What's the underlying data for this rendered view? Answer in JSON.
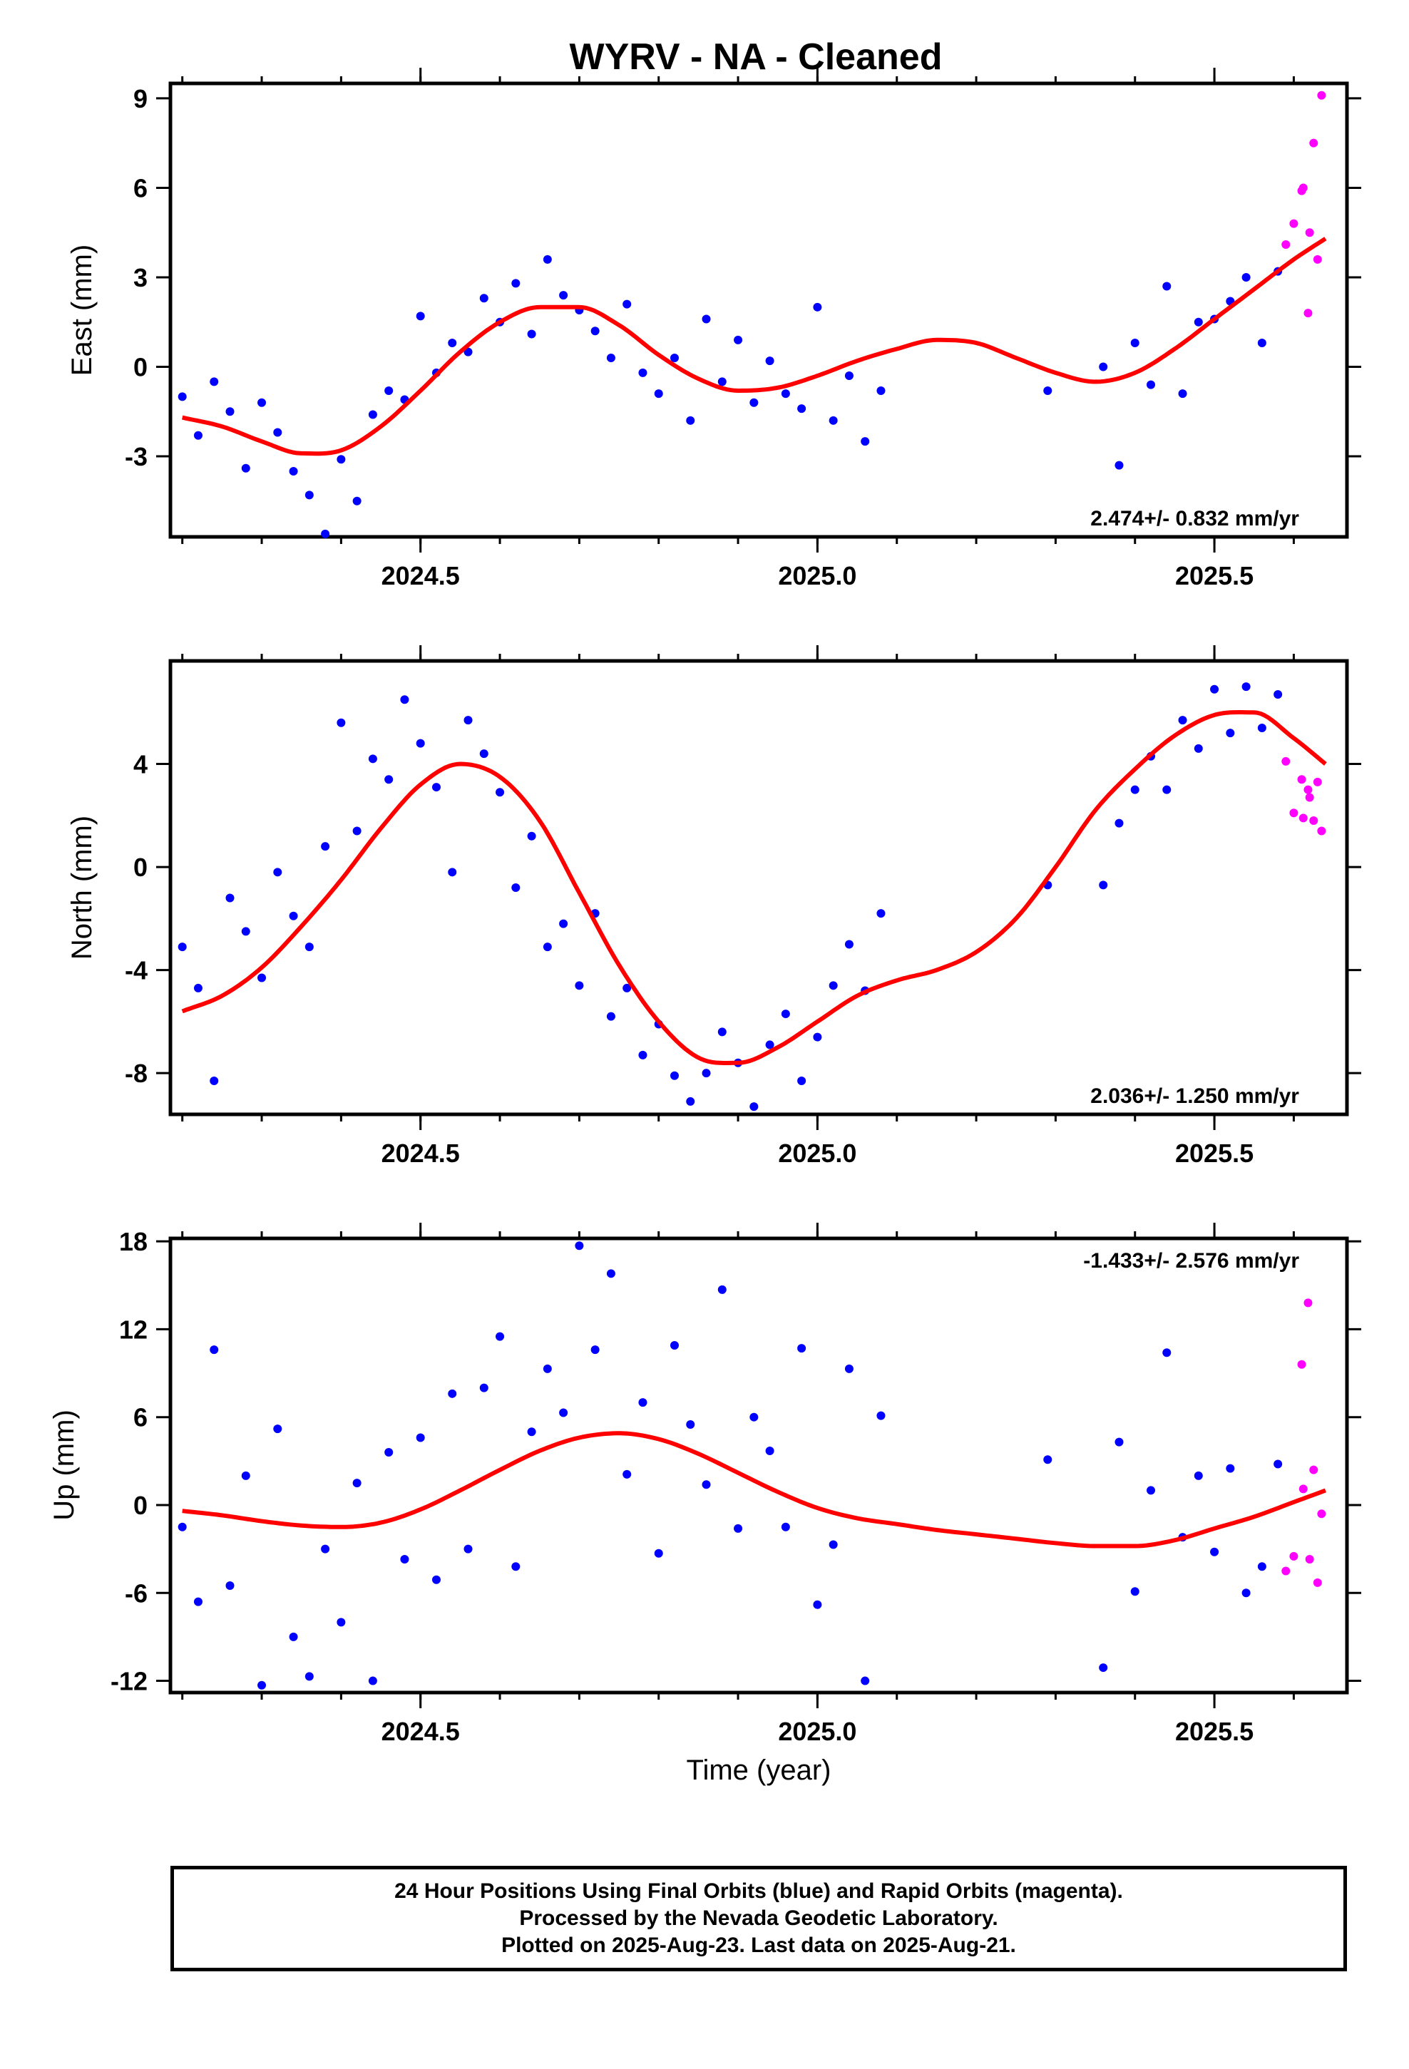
{
  "title": "WYRV  - NA - Cleaned",
  "xlabel": "Time (year)",
  "caption": {
    "line1": "24 Hour Positions Using Final Orbits (blue) and Rapid Orbits (magenta).",
    "line2": "Processed by the Nevada Geodetic Laboratory.",
    "line3": "Plotted on 2025-Aug-23. Last data on 2025-Aug-21."
  },
  "colors": {
    "final_orbits": "#0000ff",
    "rapid_orbits": "#ff00ff",
    "model_fit": "#ff0000",
    "frame": "#000000"
  },
  "chart_data": [
    {
      "type": "scatter",
      "panel": "east",
      "ylabel": "East (mm)",
      "rate_label": "2.474+/- 0.832 mm/yr",
      "xlim": [
        2024.185,
        2025.667
      ],
      "ylim": [
        -5.7,
        9.5
      ],
      "xticks": [
        2024.5,
        2025.0,
        2025.5
      ],
      "xtick_labels": [
        "2024.5",
        "2025.0",
        "2025.5"
      ],
      "yticks": [
        -3,
        0,
        3,
        6,
        9
      ],
      "ytick_labels": [
        "-3",
        "0",
        "3",
        "6",
        "9"
      ],
      "fit_knots": {
        "x": [
          2024.2,
          2024.25,
          2024.3,
          2024.35,
          2024.4,
          2024.45,
          2024.5,
          2024.55,
          2024.6,
          2024.65,
          2024.7,
          2024.75,
          2024.8,
          2024.85,
          2024.9,
          2024.95,
          2025.0,
          2025.05,
          2025.1,
          2025.15,
          2025.2,
          2025.25,
          2025.3,
          2025.35,
          2025.4,
          2025.45,
          2025.5,
          2025.55,
          2025.6,
          2025.64
        ],
        "y": [
          -1.7,
          -2.0,
          -2.5,
          -2.9,
          -2.8,
          -2.0,
          -0.8,
          0.5,
          1.5,
          2.0,
          2.0,
          1.4,
          0.4,
          -0.4,
          -0.8,
          -0.7,
          -0.3,
          0.2,
          0.6,
          0.9,
          0.8,
          0.3,
          -0.2,
          -0.5,
          -0.2,
          0.6,
          1.6,
          2.6,
          3.6,
          4.3
        ]
      },
      "final_points": {
        "x": [
          2024.2,
          2024.22,
          2024.24,
          2024.26,
          2024.28,
          2024.3,
          2024.32,
          2024.34,
          2024.36,
          2024.38,
          2024.4,
          2024.42,
          2024.44,
          2024.46,
          2024.48,
          2024.5,
          2024.52,
          2024.54,
          2024.56,
          2024.58,
          2024.6,
          2024.62,
          2024.64,
          2024.66,
          2024.68,
          2024.7,
          2024.72,
          2024.74,
          2024.76,
          2024.78,
          2024.8,
          2024.82,
          2024.84,
          2024.86,
          2024.88,
          2024.9,
          2024.92,
          2024.94,
          2024.96,
          2024.98,
          2025.0,
          2025.02,
          2025.04,
          2025.06,
          2025.08,
          2025.29,
          2025.36,
          2025.38,
          2025.4,
          2025.42,
          2025.44,
          2025.46,
          2025.48,
          2025.5,
          2025.52,
          2025.54,
          2025.56,
          2025.58
        ],
        "y": [
          -1.0,
          -2.3,
          -0.5,
          -1.5,
          -3.4,
          -1.2,
          -2.2,
          -3.5,
          -4.3,
          -5.6,
          -3.1,
          -4.5,
          -1.6,
          -0.8,
          -1.1,
          1.7,
          -0.2,
          0.8,
          0.5,
          2.3,
          1.5,
          2.8,
          1.1,
          3.6,
          2.4,
          1.9,
          1.2,
          0.3,
          2.1,
          -0.2,
          -0.9,
          0.3,
          -1.8,
          1.6,
          -0.5,
          0.9,
          -1.2,
          0.2,
          -0.9,
          -1.4,
          2.0,
          -1.8,
          -0.3,
          -2.5,
          -0.8,
          -0.8,
          0.0,
          -3.3,
          0.8,
          -0.6,
          2.7,
          -0.9,
          1.5,
          1.6,
          2.2,
          3.0,
          0.8,
          3.2
        ]
      },
      "rapid_points": {
        "x": [
          2025.59,
          2025.6,
          2025.61,
          2025.612,
          2025.618,
          2025.62,
          2025.625,
          2025.63,
          2025.635
        ],
        "y": [
          4.1,
          4.8,
          5.9,
          6.0,
          1.8,
          4.5,
          7.5,
          3.6,
          9.1
        ]
      }
    },
    {
      "type": "scatter",
      "panel": "north",
      "ylabel": "North (mm)",
      "rate_label": "2.036+/- 1.250 mm/yr",
      "xlim": [
        2024.185,
        2025.667
      ],
      "ylim": [
        -9.6,
        8.0
      ],
      "xticks": [
        2024.5,
        2025.0,
        2025.5
      ],
      "xtick_labels": [
        "2024.5",
        "2025.0",
        "2025.5"
      ],
      "yticks": [
        -8,
        -4,
        0,
        4
      ],
      "ytick_labels": [
        "-8",
        "-4",
        "0",
        "4"
      ],
      "fit_knots": {
        "x": [
          2024.2,
          2024.25,
          2024.3,
          2024.35,
          2024.4,
          2024.45,
          2024.5,
          2024.55,
          2024.6,
          2024.65,
          2024.7,
          2024.75,
          2024.8,
          2024.85,
          2024.9,
          2024.95,
          2025.0,
          2025.05,
          2025.1,
          2025.15,
          2025.2,
          2025.25,
          2025.3,
          2025.35,
          2025.4,
          2025.45,
          2025.5,
          2025.55,
          2025.6,
          2025.64
        ],
        "y": [
          -5.6,
          -5.0,
          -3.9,
          -2.3,
          -0.5,
          1.5,
          3.2,
          4.0,
          3.5,
          1.8,
          -1.0,
          -3.8,
          -6.0,
          -7.4,
          -7.6,
          -7.0,
          -6.0,
          -5.0,
          -4.4,
          -4.0,
          -3.3,
          -2.0,
          0.0,
          2.2,
          3.8,
          5.1,
          5.9,
          6.0,
          5.0,
          4.0
        ]
      },
      "final_points": {
        "x": [
          2024.2,
          2024.22,
          2024.24,
          2024.26,
          2024.28,
          2024.3,
          2024.32,
          2024.34,
          2024.36,
          2024.38,
          2024.4,
          2024.42,
          2024.44,
          2024.46,
          2024.48,
          2024.5,
          2024.52,
          2024.54,
          2024.56,
          2024.58,
          2024.6,
          2024.62,
          2024.64,
          2024.66,
          2024.68,
          2024.7,
          2024.72,
          2024.74,
          2024.76,
          2024.78,
          2024.8,
          2024.82,
          2024.84,
          2024.86,
          2024.88,
          2024.9,
          2024.92,
          2024.94,
          2024.96,
          2024.98,
          2025.0,
          2025.02,
          2025.04,
          2025.06,
          2025.08,
          2025.29,
          2025.36,
          2025.38,
          2025.4,
          2025.42,
          2025.44,
          2025.46,
          2025.48,
          2025.5,
          2025.52,
          2025.54,
          2025.56,
          2025.58
        ],
        "y": [
          -3.1,
          -4.7,
          -8.3,
          -1.2,
          -2.5,
          -4.3,
          -0.2,
          -1.9,
          -3.1,
          0.8,
          5.6,
          1.4,
          4.2,
          3.4,
          6.5,
          4.8,
          3.1,
          -0.2,
          5.7,
          4.4,
          2.9,
          -0.8,
          1.2,
          -3.1,
          -2.2,
          -4.6,
          -1.8,
          -5.8,
          -4.7,
          -7.3,
          -6.1,
          -8.1,
          -9.1,
          -8.0,
          -6.4,
          -7.6,
          -9.3,
          -6.9,
          -5.7,
          -8.3,
          -6.6,
          -4.6,
          -3.0,
          -4.8,
          -1.8,
          -0.7,
          -0.7,
          1.7,
          3.0,
          4.3,
          3.0,
          5.7,
          4.6,
          6.9,
          5.2,
          7.0,
          5.4,
          6.7
        ]
      },
      "rapid_points": {
        "x": [
          2025.59,
          2025.6,
          2025.61,
          2025.612,
          2025.618,
          2025.62,
          2025.625,
          2025.63,
          2025.635
        ],
        "y": [
          4.1,
          2.1,
          3.4,
          1.9,
          3.0,
          2.7,
          1.8,
          3.3,
          1.4
        ]
      }
    },
    {
      "type": "scatter",
      "panel": "up",
      "ylabel": "Up (mm)",
      "rate_label": "-1.433+/- 2.576 mm/yr",
      "xlim": [
        2024.185,
        2025.667
      ],
      "ylim": [
        -12.8,
        18.2
      ],
      "xticks": [
        2024.5,
        2025.0,
        2025.5
      ],
      "xtick_labels": [
        "2024.5",
        "2025.0",
        "2025.5"
      ],
      "yticks": [
        -12,
        -6,
        0,
        6,
        12,
        18
      ],
      "ytick_labels": [
        "-12",
        "-6",
        "0",
        "6",
        "12",
        "18"
      ],
      "fit_knots": {
        "x": [
          2024.2,
          2024.25,
          2024.3,
          2024.35,
          2024.4,
          2024.45,
          2024.5,
          2024.55,
          2024.6,
          2024.65,
          2024.7,
          2024.75,
          2024.8,
          2024.85,
          2024.9,
          2024.95,
          2025.0,
          2025.05,
          2025.1,
          2025.15,
          2025.2,
          2025.25,
          2025.3,
          2025.35,
          2025.4,
          2025.45,
          2025.5,
          2025.55,
          2025.6,
          2025.64
        ],
        "y": [
          -0.4,
          -0.7,
          -1.1,
          -1.4,
          -1.5,
          -1.2,
          -0.3,
          1.0,
          2.4,
          3.7,
          4.6,
          4.9,
          4.5,
          3.5,
          2.2,
          0.9,
          -0.2,
          -0.9,
          -1.3,
          -1.7,
          -2.0,
          -2.3,
          -2.6,
          -2.8,
          -2.8,
          -2.4,
          -1.6,
          -0.8,
          0.2,
          1.0
        ]
      },
      "final_points": {
        "x": [
          2024.2,
          2024.22,
          2024.24,
          2024.26,
          2024.28,
          2024.3,
          2024.32,
          2024.34,
          2024.36,
          2024.38,
          2024.4,
          2024.42,
          2024.44,
          2024.46,
          2024.48,
          2024.5,
          2024.52,
          2024.54,
          2024.56,
          2024.58,
          2024.6,
          2024.62,
          2024.64,
          2024.66,
          2024.68,
          2024.7,
          2024.72,
          2024.74,
          2024.76,
          2024.78,
          2024.8,
          2024.82,
          2024.84,
          2024.86,
          2024.88,
          2024.9,
          2024.92,
          2024.94,
          2024.96,
          2024.98,
          2025.0,
          2025.02,
          2025.04,
          2025.06,
          2025.08,
          2025.29,
          2025.36,
          2025.38,
          2025.4,
          2025.42,
          2025.44,
          2025.46,
          2025.48,
          2025.5,
          2025.52,
          2025.54,
          2025.56,
          2025.58
        ],
        "y": [
          -1.5,
          -6.6,
          10.6,
          -5.5,
          2.0,
          -12.3,
          5.2,
          -9.0,
          -11.7,
          -3.0,
          -8.0,
          1.5,
          -12.0,
          3.6,
          -3.7,
          4.6,
          -5.1,
          7.6,
          -3.0,
          8.0,
          11.5,
          -4.2,
          5.0,
          9.3,
          6.3,
          17.7,
          10.6,
          15.8,
          2.1,
          7.0,
          -3.3,
          10.9,
          5.5,
          1.4,
          14.7,
          -1.6,
          6.0,
          3.7,
          -1.5,
          10.7,
          -6.8,
          -2.7,
          9.3,
          -12.0,
          6.1,
          3.1,
          -11.1,
          4.3,
          -5.9,
          1.0,
          10.4,
          -2.2,
          2.0,
          -3.2,
          2.5,
          -6.0,
          -4.2,
          2.8
        ]
      },
      "rapid_points": {
        "x": [
          2025.59,
          2025.6,
          2025.61,
          2025.612,
          2025.618,
          2025.62,
          2025.625,
          2025.63,
          2025.635
        ],
        "y": [
          -4.5,
          -3.5,
          9.6,
          1.1,
          13.8,
          -3.7,
          2.4,
          -5.3,
          -0.6
        ]
      }
    }
  ]
}
